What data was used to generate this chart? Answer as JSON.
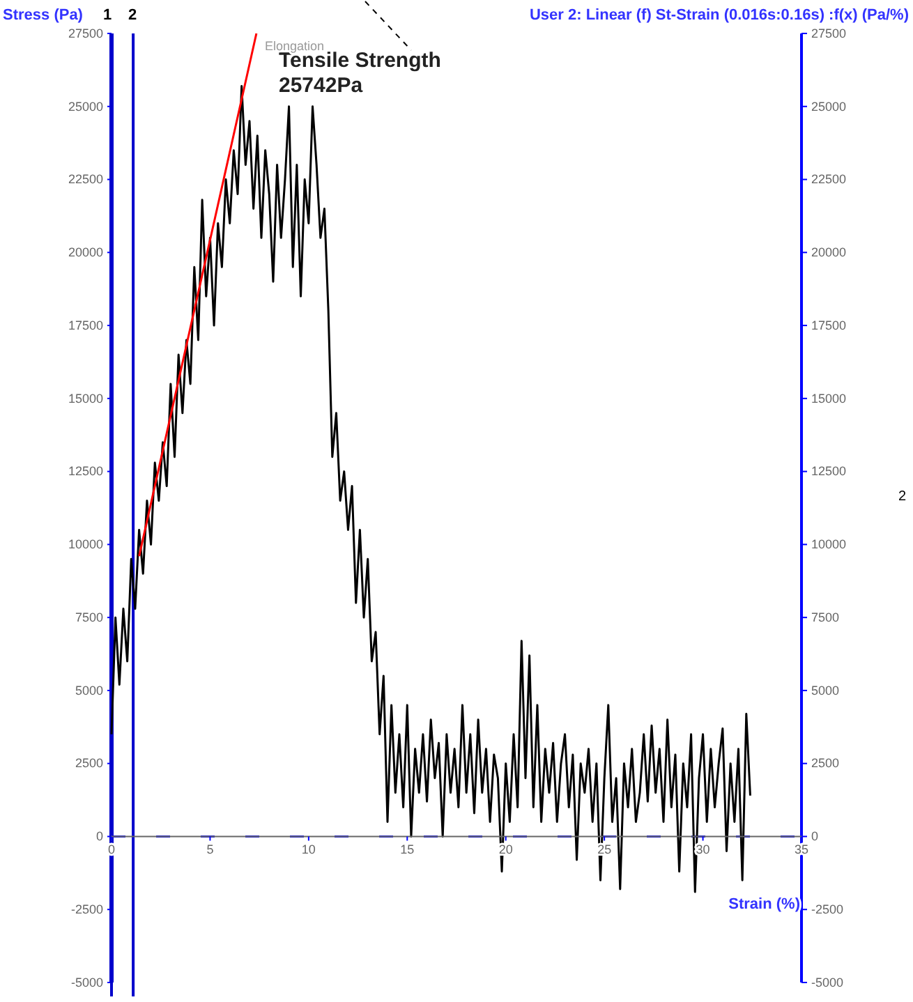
{
  "chart_data": {
    "type": "line",
    "ylabel": "Stress (Pa)",
    "xlabel": "Strain (%)",
    "y2label": "User 2: Linear (f) St-Strain (0.016s:0.16s) :f(x) (Pa/%)",
    "xlim": [
      0,
      35
    ],
    "xticks": [
      0,
      5,
      10,
      15,
      20,
      25,
      30,
      35
    ],
    "ylim": [
      -5000,
      27500
    ],
    "yticks": [
      -5000,
      -2500,
      0,
      2500,
      5000,
      7500,
      10000,
      12500,
      15000,
      17500,
      20000,
      22500,
      25000,
      27500
    ],
    "y2lim": [
      -5000,
      27500
    ],
    "y2ticks": [
      -5000,
      -2500,
      0,
      2500,
      5000,
      7500,
      10000,
      12500,
      15000,
      17500,
      20000,
      22500,
      25000,
      27500
    ],
    "marker": "none",
    "line_style": "solid",
    "series": [
      {
        "color": "#000000",
        "x": [
          0,
          0.2,
          0.4,
          0.6,
          0.8,
          1,
          1.2,
          1.4,
          1.6,
          1.8,
          2,
          2.2,
          2.4,
          2.6,
          2.8,
          3,
          3.2,
          3.4,
          3.6,
          3.8,
          4,
          4.2,
          4.4,
          4.6,
          4.8,
          5,
          5.2,
          5.4,
          5.6,
          5.8,
          6,
          6.2,
          6.4,
          6.6,
          6.8,
          7,
          7.2,
          7.4,
          7.6,
          7.8,
          8,
          8.2,
          8.4,
          8.6,
          8.8,
          9,
          9.2,
          9.4,
          9.6,
          9.8,
          10,
          10.2,
          10.4,
          10.6,
          10.8,
          11,
          11.2,
          11.4,
          11.6,
          11.8,
          12,
          12.2,
          12.4,
          12.6,
          12.8,
          13,
          13.2,
          13.4,
          13.6,
          13.8,
          14,
          14.2,
          14.4,
          14.6,
          14.8,
          15,
          15.2,
          15.4,
          15.6,
          15.8,
          16,
          16.2,
          16.4,
          16.6,
          16.8,
          17,
          17.2,
          17.4,
          17.6,
          17.8,
          18,
          18.2,
          18.4,
          18.6,
          18.8,
          19,
          19.2,
          19.4,
          19.6,
          19.8,
          20,
          20.2,
          20.4,
          20.6,
          20.8,
          21,
          21.2,
          21.4,
          21.6,
          21.8,
          22,
          22.2,
          22.4,
          22.6,
          22.8,
          23,
          23.2,
          23.4,
          23.6,
          23.8,
          24,
          24.2,
          24.4,
          24.6,
          24.8,
          25,
          25.2,
          25.4,
          25.6,
          25.8,
          26,
          26.2,
          26.4,
          26.6,
          26.8,
          27,
          27.2,
          27.4,
          27.6,
          27.8,
          28,
          28.2,
          28.4,
          28.6,
          28.8,
          29,
          29.2,
          29.4,
          29.6,
          29.8,
          30,
          30.2,
          30.4,
          30.6,
          30.8,
          31,
          31.2,
          31.4,
          31.6,
          31.8,
          32,
          32.2,
          32.4
        ],
        "values": [
          3500,
          7500,
          5200,
          7800,
          6000,
          9500,
          7800,
          10500,
          9000,
          11500,
          10000,
          12800,
          11500,
          13500,
          12000,
          15500,
          13000,
          16500,
          14500,
          17000,
          15500,
          19500,
          17000,
          21800,
          18500,
          20500,
          17500,
          21000,
          19500,
          22500,
          21000,
          23500,
          22000,
          25700,
          23000,
          24500,
          21500,
          24000,
          20500,
          23500,
          22000,
          19000,
          23000,
          20500,
          22500,
          25000,
          19500,
          23000,
          18500,
          22500,
          21000,
          25000,
          23000,
          20500,
          21500,
          18000,
          13000,
          14500,
          11500,
          12500,
          10500,
          12000,
          8000,
          10500,
          7500,
          9500,
          6000,
          7000,
          3500,
          5500,
          500,
          4500,
          1500,
          3500,
          1000,
          4500,
          0,
          3000,
          1500,
          3500,
          1200,
          4000,
          2000,
          3200,
          0,
          3500,
          1500,
          3000,
          1000,
          4500,
          1500,
          3500,
          800,
          4000,
          1500,
          3000,
          500,
          2800,
          2000,
          -1200,
          2500,
          500,
          3500,
          1000,
          6700,
          2000,
          6200,
          1000,
          4500,
          500,
          3000,
          1500,
          3200,
          500,
          2500,
          3500,
          1000,
          2800,
          -800,
          2500,
          1500,
          3000,
          500,
          2500,
          -1500,
          2000,
          4500,
          500,
          2000,
          -1800,
          2500,
          1000,
          3000,
          500,
          1500,
          3500,
          1200,
          3800,
          1500,
          3000,
          500,
          4000,
          1000,
          2800,
          -1200,
          2500,
          1000,
          3500,
          -1900,
          2000,
          3500,
          500,
          3000,
          1000,
          2500,
          3700,
          -500,
          2500,
          500,
          3000,
          -1500,
          4200,
          1400
        ]
      },
      {
        "color": "#ff0000",
        "x": [
          1.4,
          7.35
        ],
        "values": [
          9600,
          27500
        ]
      }
    ],
    "ref_lines": [
      {
        "axis": "x",
        "value": 0,
        "color": "#0000cc"
      },
      {
        "axis": "x",
        "value": 1.1,
        "color": "#0000cc"
      },
      {
        "axis": "y",
        "value": 0,
        "color": "#0000ff",
        "line_style": "dashed"
      }
    ],
    "annotations": [
      "Tensile Strength\n25742Pa",
      "Elongation",
      "2",
      "1",
      "2"
    ]
  }
}
